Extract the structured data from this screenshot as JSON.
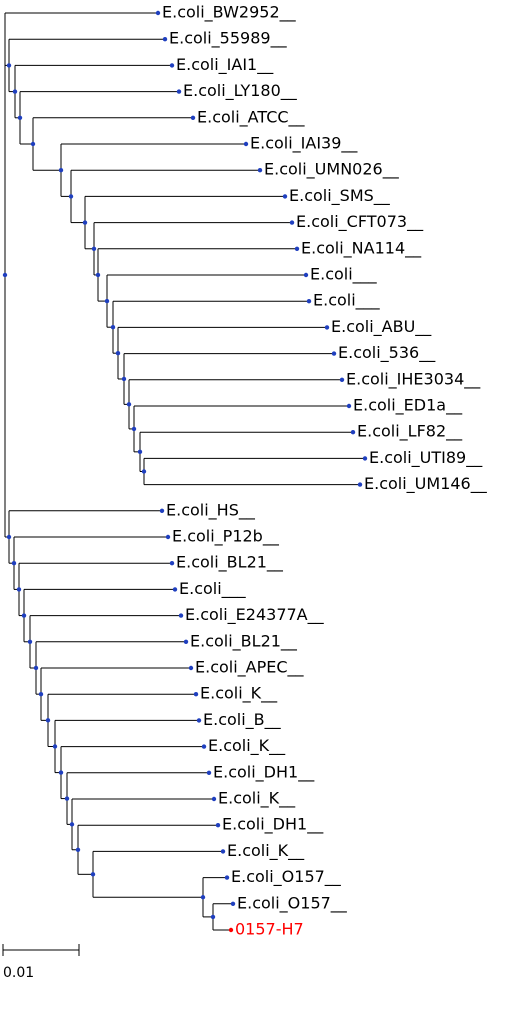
{
  "leaves": [
    "E.coli_BW2952__",
    "E.coli_55989__",
    "E.coli_IAI1__",
    "E.coli_LY180__",
    "E.coli_ATCC__",
    "E.coli_IAI39__",
    "E.coli_UMN026__",
    "E.coli_SMS__",
    "E.coli_CFT073__",
    "E.coli_NA114__",
    "E.coli___",
    "E.coli___",
    "E.coli_ABU__",
    "E.coli_536__",
    "E.coli_IHE3034__",
    "E.coli_ED1a__",
    "E.coli_LF82__",
    "E.coli_UTI89__",
    "E.coli_UM146__",
    "E.coli_HS__",
    "E.coli_P12b__",
    "E.coli_BL21__",
    "E.coli___",
    "E.coli_E24377A__",
    "E.coli_BL21__",
    "E.coli_APEC__",
    "E.coli_K__",
    "E.coli_B__",
    "E.coli_K__",
    "E.coli_DH1__",
    "E.coli_K__",
    "E.coli_DH1__",
    "E.coli_K__",
    "E.coli_O157__",
    "E.coli_O157__",
    "0157-H7"
  ],
  "scale_bar": {
    "label": "0.01"
  }
}
